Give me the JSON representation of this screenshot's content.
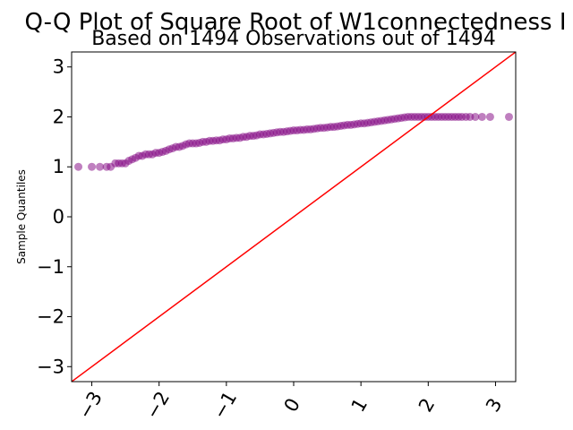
{
  "chart_data": {
    "type": "scatter",
    "title": "Q-Q Plot of Square Root of W1connectedness I",
    "subtitle": "Based on 1494 Observations out of 1494",
    "xlabel": "",
    "ylabel": "Sample Quantiles",
    "xlim": [
      -3.3,
      3.3
    ],
    "ylim": [
      -3.3,
      3.3
    ],
    "x_ticks": [
      -3,
      -2,
      -1,
      0,
      1,
      2,
      3
    ],
    "y_ticks": [
      -3,
      -2,
      -1,
      0,
      1,
      2,
      3
    ],
    "x_tick_labels": [
      "−3",
      "−2",
      "−1",
      "0",
      "1",
      "2",
      "3"
    ],
    "y_tick_labels": [
      "−3",
      "−2",
      "−1",
      "0",
      "1",
      "2",
      "3"
    ],
    "grid": false,
    "colors": {
      "points": "#800080",
      "reference_line": "#ff0000"
    },
    "reference_line": {
      "slope": 1,
      "intercept": 0
    },
    "points": [
      {
        "x": -3.2,
        "y": 1.0
      },
      {
        "x": -3.0,
        "y": 1.0
      },
      {
        "x": -2.88,
        "y": 1.0
      },
      {
        "x": -2.78,
        "y": 1.0
      },
      {
        "x": -2.72,
        "y": 1.0
      },
      {
        "x": -2.65,
        "y": 1.07
      },
      {
        "x": -2.6,
        "y": 1.07
      },
      {
        "x": -2.55,
        "y": 1.07
      },
      {
        "x": -2.5,
        "y": 1.07
      },
      {
        "x": -2.45,
        "y": 1.12
      },
      {
        "x": -2.4,
        "y": 1.15
      },
      {
        "x": -2.35,
        "y": 1.18
      },
      {
        "x": -2.3,
        "y": 1.22
      },
      {
        "x": -2.25,
        "y": 1.22
      },
      {
        "x": -2.2,
        "y": 1.25
      },
      {
        "x": -2.15,
        "y": 1.25
      },
      {
        "x": -2.1,
        "y": 1.25
      },
      {
        "x": -2.05,
        "y": 1.28
      },
      {
        "x": -2.0,
        "y": 1.28
      },
      {
        "x": -1.95,
        "y": 1.3
      },
      {
        "x": -1.9,
        "y": 1.32
      },
      {
        "x": -1.85,
        "y": 1.35
      },
      {
        "x": -1.8,
        "y": 1.37
      },
      {
        "x": -1.75,
        "y": 1.4
      },
      {
        "x": -1.7,
        "y": 1.4
      },
      {
        "x": -1.65,
        "y": 1.42
      },
      {
        "x": -1.6,
        "y": 1.45
      },
      {
        "x": -1.55,
        "y": 1.47
      },
      {
        "x": -1.5,
        "y": 1.47
      },
      {
        "x": -1.45,
        "y": 1.47
      },
      {
        "x": -1.4,
        "y": 1.48
      },
      {
        "x": -1.35,
        "y": 1.5
      },
      {
        "x": -1.3,
        "y": 1.5
      },
      {
        "x": -1.25,
        "y": 1.52
      },
      {
        "x": -1.2,
        "y": 1.52
      },
      {
        "x": -1.15,
        "y": 1.53
      },
      {
        "x": -1.1,
        "y": 1.53
      },
      {
        "x": -1.05,
        "y": 1.55
      },
      {
        "x": -1.0,
        "y": 1.55
      },
      {
        "x": -0.95,
        "y": 1.57
      },
      {
        "x": -0.9,
        "y": 1.57
      },
      {
        "x": -0.85,
        "y": 1.58
      },
      {
        "x": -0.8,
        "y": 1.58
      },
      {
        "x": -0.75,
        "y": 1.6
      },
      {
        "x": -0.7,
        "y": 1.6
      },
      {
        "x": -0.65,
        "y": 1.62
      },
      {
        "x": -0.6,
        "y": 1.62
      },
      {
        "x": -0.55,
        "y": 1.63
      },
      {
        "x": -0.5,
        "y": 1.65
      },
      {
        "x": -0.45,
        "y": 1.65
      },
      {
        "x": -0.4,
        "y": 1.66
      },
      {
        "x": -0.35,
        "y": 1.67
      },
      {
        "x": -0.3,
        "y": 1.68
      },
      {
        "x": -0.25,
        "y": 1.69
      },
      {
        "x": -0.2,
        "y": 1.7
      },
      {
        "x": -0.15,
        "y": 1.7
      },
      {
        "x": -0.1,
        "y": 1.71
      },
      {
        "x": -0.05,
        "y": 1.72
      },
      {
        "x": 0.0,
        "y": 1.73
      },
      {
        "x": 0.05,
        "y": 1.73
      },
      {
        "x": 0.1,
        "y": 1.74
      },
      {
        "x": 0.15,
        "y": 1.74
      },
      {
        "x": 0.2,
        "y": 1.75
      },
      {
        "x": 0.25,
        "y": 1.75
      },
      {
        "x": 0.3,
        "y": 1.76
      },
      {
        "x": 0.35,
        "y": 1.77
      },
      {
        "x": 0.4,
        "y": 1.78
      },
      {
        "x": 0.45,
        "y": 1.78
      },
      {
        "x": 0.5,
        "y": 1.79
      },
      {
        "x": 0.55,
        "y": 1.8
      },
      {
        "x": 0.6,
        "y": 1.8
      },
      {
        "x": 0.65,
        "y": 1.81
      },
      {
        "x": 0.7,
        "y": 1.82
      },
      {
        "x": 0.75,
        "y": 1.83
      },
      {
        "x": 0.8,
        "y": 1.84
      },
      {
        "x": 0.85,
        "y": 1.84
      },
      {
        "x": 0.9,
        "y": 1.85
      },
      {
        "x": 0.95,
        "y": 1.86
      },
      {
        "x": 1.0,
        "y": 1.87
      },
      {
        "x": 1.05,
        "y": 1.87
      },
      {
        "x": 1.1,
        "y": 1.88
      },
      {
        "x": 1.15,
        "y": 1.89
      },
      {
        "x": 1.2,
        "y": 1.9
      },
      {
        "x": 1.25,
        "y": 1.91
      },
      {
        "x": 1.3,
        "y": 1.92
      },
      {
        "x": 1.35,
        "y": 1.93
      },
      {
        "x": 1.4,
        "y": 1.94
      },
      {
        "x": 1.45,
        "y": 1.95
      },
      {
        "x": 1.5,
        "y": 1.96
      },
      {
        "x": 1.55,
        "y": 1.97
      },
      {
        "x": 1.6,
        "y": 1.98
      },
      {
        "x": 1.65,
        "y": 1.99
      },
      {
        "x": 1.7,
        "y": 2.0
      },
      {
        "x": 1.75,
        "y": 2.0
      },
      {
        "x": 1.8,
        "y": 2.0
      },
      {
        "x": 1.85,
        "y": 2.0
      },
      {
        "x": 1.9,
        "y": 2.0
      },
      {
        "x": 1.95,
        "y": 2.0
      },
      {
        "x": 2.0,
        "y": 2.0
      },
      {
        "x": 2.05,
        "y": 2.0
      },
      {
        "x": 2.1,
        "y": 2.0
      },
      {
        "x": 2.15,
        "y": 2.0
      },
      {
        "x": 2.2,
        "y": 2.0
      },
      {
        "x": 2.25,
        "y": 2.0
      },
      {
        "x": 2.3,
        "y": 2.0
      },
      {
        "x": 2.35,
        "y": 2.0
      },
      {
        "x": 2.4,
        "y": 2.0
      },
      {
        "x": 2.45,
        "y": 2.0
      },
      {
        "x": 2.5,
        "y": 2.0
      },
      {
        "x": 2.56,
        "y": 2.0
      },
      {
        "x": 2.62,
        "y": 2.0
      },
      {
        "x": 2.7,
        "y": 2.0
      },
      {
        "x": 2.8,
        "y": 2.0
      },
      {
        "x": 2.92,
        "y": 2.0
      },
      {
        "x": 3.2,
        "y": 2.0
      }
    ]
  }
}
